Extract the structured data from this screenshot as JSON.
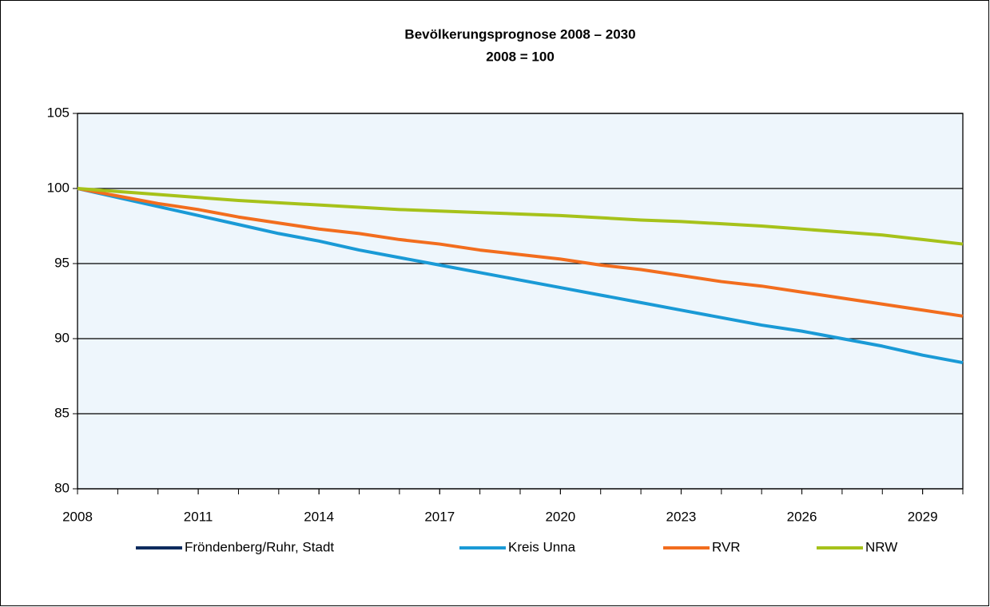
{
  "chart_data": {
    "type": "line",
    "title": "Bevölkerungsprognose 2008 – 2030",
    "subtitle": "2008 = 100",
    "x": [
      2008,
      2009,
      2010,
      2011,
      2012,
      2013,
      2014,
      2015,
      2016,
      2017,
      2018,
      2019,
      2020,
      2021,
      2022,
      2023,
      2024,
      2025,
      2026,
      2027,
      2028,
      2029,
      2030
    ],
    "xlim": [
      2008,
      2030
    ],
    "xticks": [
      2008,
      2011,
      2014,
      2017,
      2020,
      2023,
      2026,
      2029
    ],
    "ylim": [
      80,
      105
    ],
    "yticks": [
      80,
      85,
      90,
      95,
      100,
      105
    ],
    "grid": true,
    "legend": "bottom",
    "series": [
      {
        "name": "Fröndenberg/Ruhr, Stadt",
        "color": "#0d2b5e",
        "values": [
          null,
          null,
          null,
          null,
          null,
          null,
          null,
          null,
          null,
          null,
          null,
          null,
          null,
          null,
          null,
          null,
          null,
          null,
          null,
          null,
          null,
          null,
          null
        ]
      },
      {
        "name": "Kreis Unna",
        "color": "#1a9ad6",
        "values": [
          100,
          99.4,
          98.8,
          98.2,
          97.6,
          97.0,
          96.5,
          95.9,
          95.4,
          94.9,
          94.4,
          93.9,
          93.4,
          92.9,
          92.4,
          91.9,
          91.4,
          90.9,
          90.5,
          90.0,
          89.5,
          88.9,
          88.4
        ]
      },
      {
        "name": "RVR",
        "color": "#f26d1e",
        "values": [
          100,
          99.5,
          99.0,
          98.6,
          98.1,
          97.7,
          97.3,
          97.0,
          96.6,
          96.3,
          95.9,
          95.6,
          95.3,
          94.9,
          94.6,
          94.2,
          93.8,
          93.5,
          93.1,
          92.7,
          92.3,
          91.9,
          91.5
        ]
      },
      {
        "name": "NRW",
        "color": "#a6c21a",
        "values": [
          100,
          99.8,
          99.6,
          99.4,
          99.2,
          99.05,
          98.9,
          98.75,
          98.6,
          98.5,
          98.4,
          98.3,
          98.2,
          98.05,
          97.9,
          97.8,
          97.65,
          97.5,
          97.3,
          97.1,
          96.9,
          96.6,
          96.3
        ]
      }
    ]
  }
}
